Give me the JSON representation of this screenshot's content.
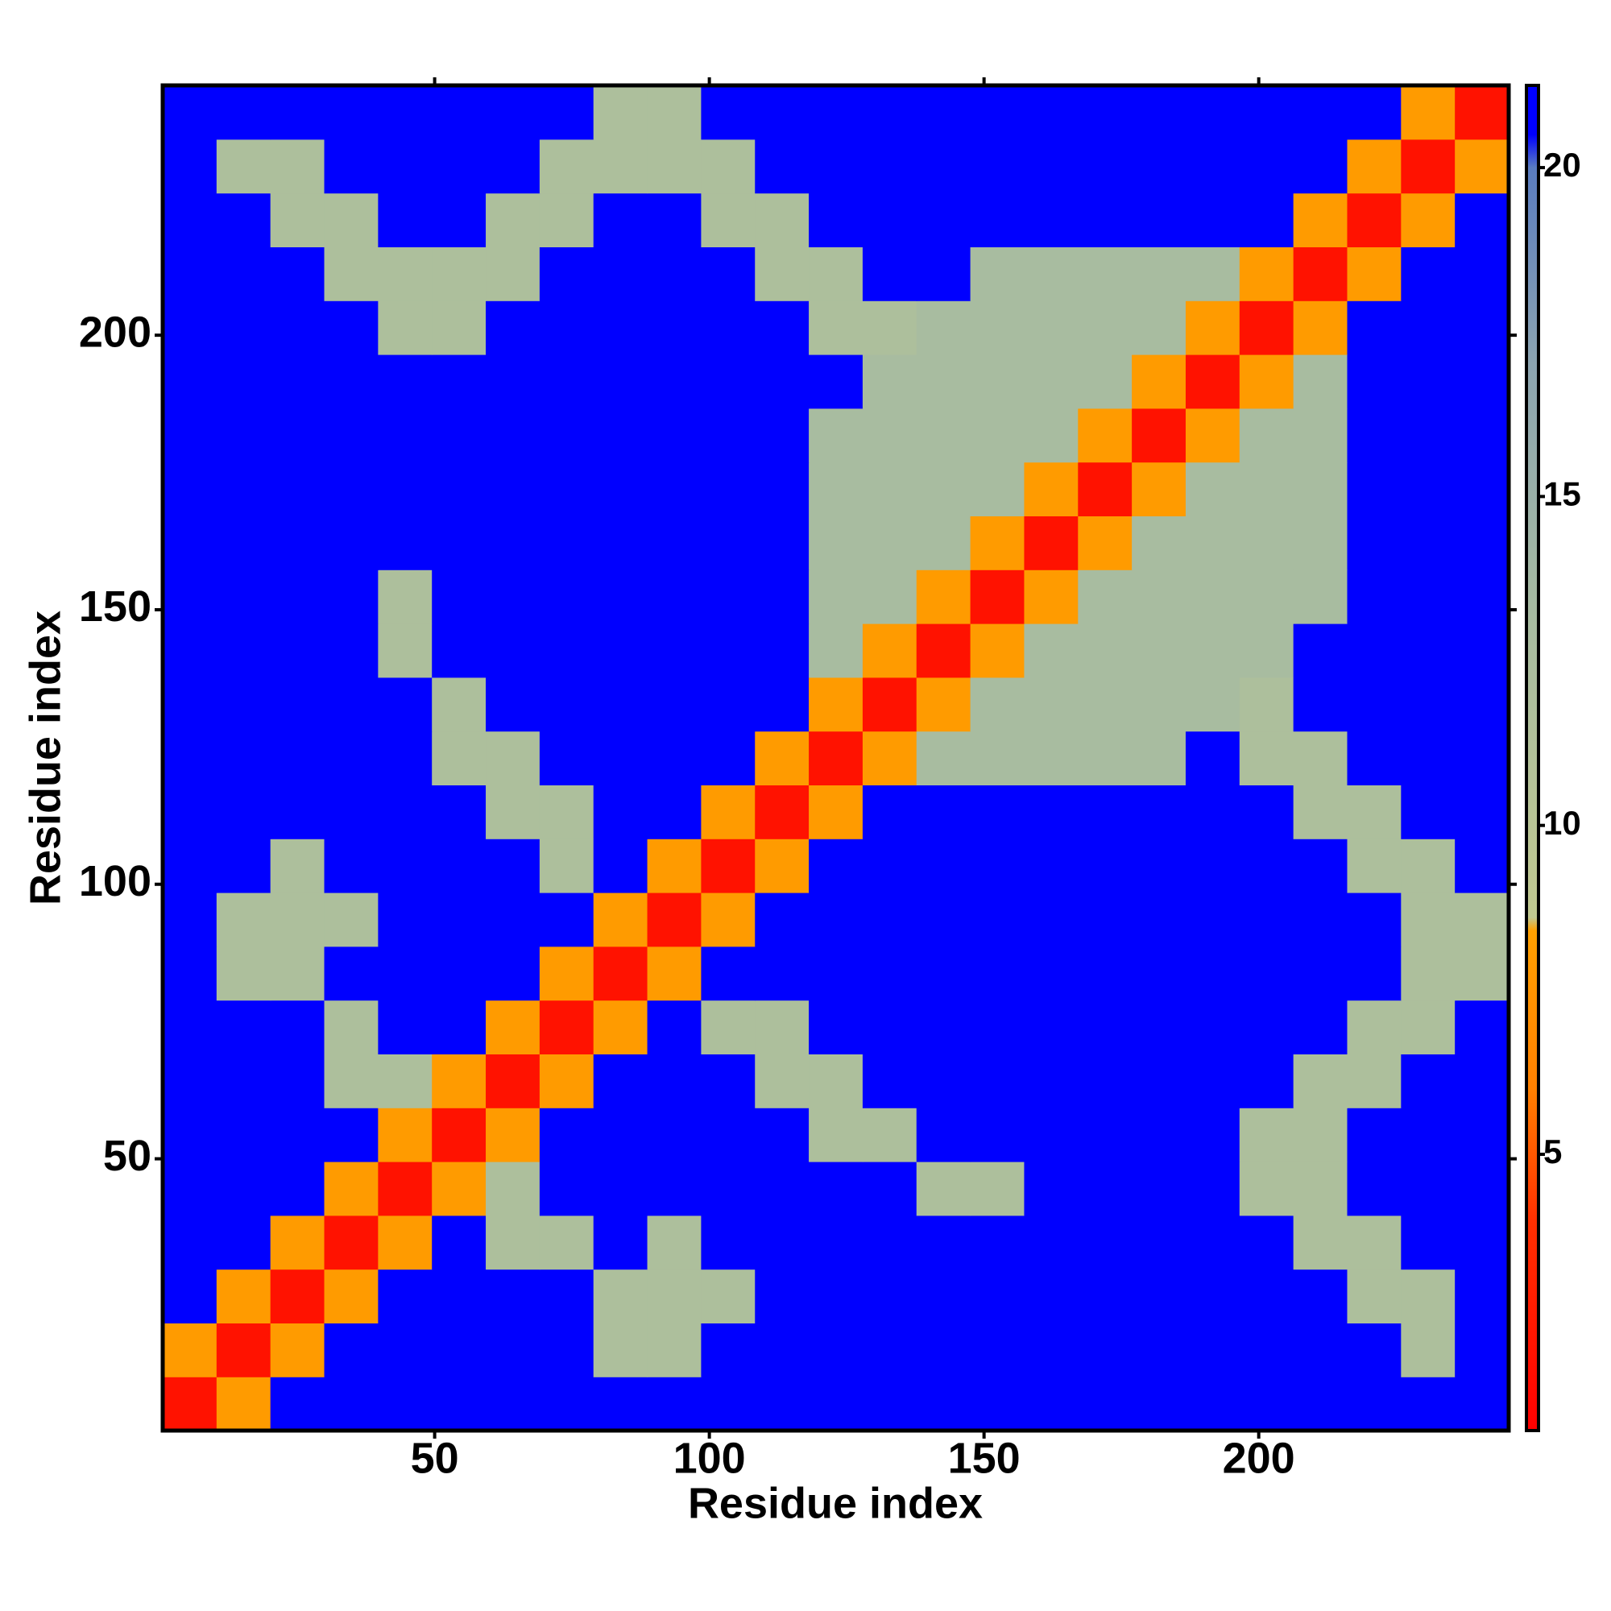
{
  "chart_data": {
    "type": "heatmap",
    "xlabel": "Residue index",
    "ylabel": "Residue index",
    "xlim": [
      0.5,
      245.5
    ],
    "ylim": [
      0.5,
      245.5
    ],
    "xticks": [
      50,
      100,
      150,
      200
    ],
    "yticks": [
      50,
      100,
      150,
      200
    ],
    "clim": [
      0.8,
      21.25
    ],
    "cticks": [
      5,
      10,
      15,
      20
    ],
    "colorscale": [
      [
        0.8,
        "#ff0000"
      ],
      [
        4,
        "#ff3000"
      ],
      [
        6,
        "#ff8000"
      ],
      [
        8.4,
        "#ffa000"
      ],
      [
        8.6,
        "#c0c890"
      ],
      [
        13,
        "#a8bca0"
      ],
      [
        17,
        "#8ca4b0"
      ],
      [
        20,
        "#5a7cc0"
      ],
      [
        20.5,
        "#0000ff"
      ],
      [
        21.25,
        "#0000ff"
      ]
    ],
    "x": [
      5.4,
      15.2,
      25,
      34.8,
      44.6,
      54.4,
      64.2,
      74,
      83.8,
      93.6,
      103.4,
      113.2,
      123,
      132.8,
      142.6,
      152.4,
      162.2,
      172,
      181.8,
      191.6,
      201.4,
      211.2,
      221,
      230.8,
      240.6
    ],
    "y": [
      5.4,
      15.2,
      25,
      34.8,
      44.6,
      54.4,
      64.2,
      74,
      83.8,
      93.6,
      103.4,
      113.2,
      123,
      132.8,
      142.6,
      152.4,
      162.2,
      172,
      181.8,
      191.6,
      201.4,
      211.2,
      221,
      230.8,
      240.6
    ],
    "z": [
      [
        2,
        8,
        21,
        21,
        21,
        21,
        21,
        21,
        21,
        21,
        21,
        21,
        21,
        21,
        21,
        21,
        21,
        21,
        21,
        21,
        21,
        21,
        21,
        21,
        21
      ],
      [
        8,
        2,
        8,
        21,
        21,
        21,
        21,
        21,
        12,
        12,
        21,
        21,
        21,
        21,
        21,
        21,
        21,
        21,
        21,
        21,
        21,
        21,
        21,
        12,
        21
      ],
      [
        21,
        8,
        2,
        8,
        21,
        21,
        21,
        21,
        12,
        12,
        12,
        21,
        21,
        21,
        21,
        21,
        21,
        21,
        21,
        21,
        21,
        21,
        12,
        12,
        21
      ],
      [
        21,
        21,
        8,
        2,
        8,
        21,
        12,
        12,
        21,
        12,
        21,
        21,
        21,
        21,
        21,
        21,
        21,
        21,
        21,
        21,
        21,
        12,
        12,
        21,
        21
      ],
      [
        21,
        21,
        21,
        8,
        2,
        8,
        12,
        21,
        21,
        21,
        21,
        21,
        21,
        21,
        12,
        12,
        21,
        21,
        21,
        21,
        12,
        12,
        21,
        21,
        21
      ],
      [
        21,
        21,
        21,
        21,
        8,
        2,
        8,
        21,
        21,
        21,
        21,
        21,
        12,
        12,
        21,
        21,
        21,
        21,
        21,
        21,
        12,
        12,
        21,
        21,
        21
      ],
      [
        21,
        21,
        21,
        12,
        12,
        8,
        2,
        8,
        21,
        21,
        21,
        12,
        12,
        21,
        21,
        21,
        21,
        21,
        21,
        21,
        21,
        12,
        12,
        21,
        21
      ],
      [
        21,
        21,
        21,
        12,
        21,
        21,
        8,
        2,
        8,
        21,
        12,
        12,
        21,
        21,
        21,
        21,
        21,
        21,
        21,
        21,
        21,
        21,
        12,
        12,
        21
      ],
      [
        21,
        12,
        12,
        21,
        21,
        21,
        21,
        8,
        2,
        8,
        21,
        21,
        21,
        21,
        21,
        21,
        21,
        21,
        21,
        21,
        21,
        21,
        21,
        12,
        12
      ],
      [
        21,
        12,
        12,
        12,
        21,
        21,
        21,
        21,
        8,
        2,
        8,
        21,
        21,
        21,
        21,
        21,
        21,
        21,
        21,
        21,
        21,
        21,
        21,
        12,
        12
      ],
      [
        21,
        21,
        12,
        21,
        21,
        21,
        21,
        12,
        21,
        8,
        2,
        8,
        21,
        21,
        21,
        21,
        21,
        21,
        21,
        21,
        21,
        21,
        12,
        12,
        21
      ],
      [
        21,
        21,
        21,
        21,
        21,
        21,
        12,
        12,
        21,
        21,
        8,
        2,
        8,
        21,
        21,
        21,
        21,
        21,
        21,
        21,
        21,
        12,
        12,
        21,
        21
      ],
      [
        21,
        21,
        21,
        21,
        21,
        12,
        12,
        21,
        21,
        21,
        21,
        8,
        2,
        8,
        13,
        13,
        13,
        13,
        13,
        21,
        12,
        12,
        21,
        21,
        21
      ],
      [
        21,
        21,
        21,
        21,
        21,
        12,
        21,
        21,
        21,
        21,
        21,
        21,
        8,
        2,
        8,
        13,
        13,
        13,
        13,
        13,
        12,
        21,
        21,
        21,
        21
      ],
      [
        21,
        21,
        21,
        21,
        12,
        21,
        21,
        21,
        21,
        21,
        21,
        21,
        13,
        8,
        2,
        8,
        13,
        13,
        13,
        13,
        13,
        21,
        21,
        21,
        21
      ],
      [
        21,
        21,
        21,
        21,
        12,
        21,
        21,
        21,
        21,
        21,
        21,
        21,
        13,
        13,
        8,
        2,
        8,
        13,
        13,
        13,
        13,
        13,
        21,
        21,
        21
      ],
      [
        21,
        21,
        21,
        21,
        21,
        21,
        21,
        21,
        21,
        21,
        21,
        21,
        13,
        13,
        13,
        8,
        2,
        8,
        13,
        13,
        13,
        13,
        21,
        21,
        21
      ],
      [
        21,
        21,
        21,
        21,
        21,
        21,
        21,
        21,
        21,
        21,
        21,
        21,
        13,
        13,
        13,
        13,
        8,
        2,
        8,
        13,
        13,
        13,
        21,
        21,
        21
      ],
      [
        21,
        21,
        21,
        21,
        21,
        21,
        21,
        21,
        21,
        21,
        21,
        21,
        13,
        13,
        13,
        13,
        13,
        8,
        2,
        8,
        13,
        13,
        21,
        21,
        21
      ],
      [
        21,
        21,
        21,
        21,
        21,
        21,
        21,
        21,
        21,
        21,
        21,
        21,
        21,
        13,
        13,
        13,
        13,
        13,
        8,
        2,
        8,
        13,
        21,
        21,
        21
      ],
      [
        21,
        21,
        21,
        21,
        12,
        12,
        21,
        21,
        21,
        21,
        21,
        21,
        12,
        12,
        13,
        13,
        13,
        13,
        13,
        8,
        2,
        8,
        21,
        21,
        21
      ],
      [
        21,
        21,
        21,
        12,
        12,
        12,
        12,
        21,
        21,
        21,
        21,
        12,
        12,
        21,
        21,
        13,
        13,
        13,
        13,
        13,
        8,
        2,
        8,
        21,
        21
      ],
      [
        21,
        21,
        12,
        12,
        21,
        21,
        12,
        12,
        21,
        21,
        12,
        12,
        21,
        21,
        21,
        21,
        21,
        21,
        21,
        21,
        21,
        8,
        2,
        8,
        21
      ],
      [
        21,
        12,
        12,
        21,
        21,
        21,
        21,
        12,
        12,
        12,
        12,
        21,
        21,
        21,
        21,
        21,
        21,
        21,
        21,
        21,
        21,
        21,
        8,
        2,
        8
      ],
      [
        21,
        21,
        21,
        21,
        21,
        21,
        21,
        21,
        12,
        12,
        21,
        21,
        21,
        21,
        21,
        21,
        21,
        21,
        21,
        21,
        21,
        21,
        21,
        8,
        2
      ]
    ]
  }
}
